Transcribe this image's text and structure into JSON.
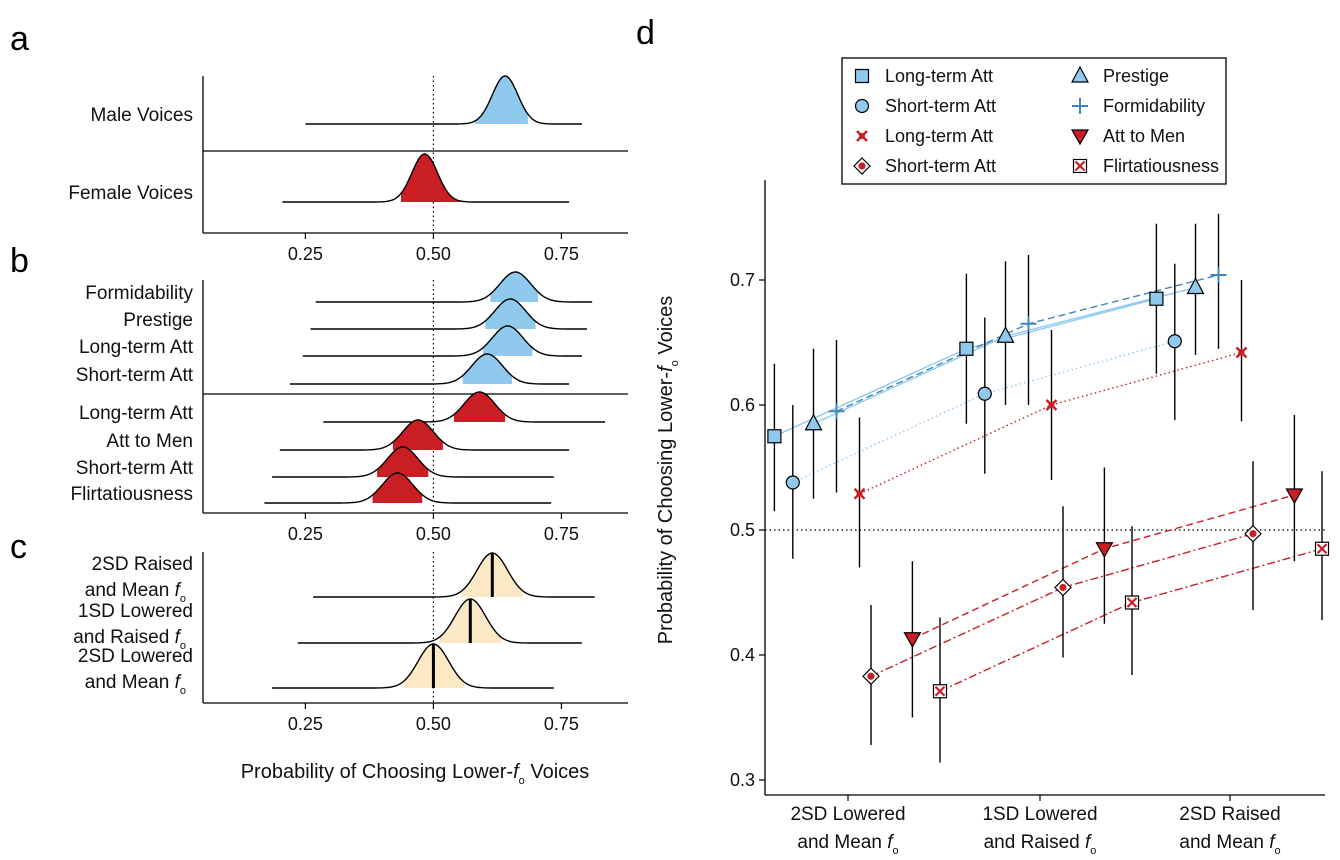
{
  "panels": {
    "a": "a",
    "b": "b",
    "c": "c",
    "d": "d"
  },
  "chart_data": [
    {
      "panel": "a",
      "type": "area",
      "categories": [
        "Male Voices",
        "Female Voices"
      ],
      "series": [
        {
          "name": "Male Voices",
          "color": "#8fc9ee",
          "peak": 0.64,
          "sd": 0.025,
          "range": [
            0.25,
            0.79
          ],
          "hdi": [
            0.58,
            0.685
          ]
        },
        {
          "name": "Female Voices",
          "color": "#c81e24",
          "peak": 0.483,
          "sd": 0.025,
          "range": [
            0.205,
            0.765
          ],
          "hdi": [
            0.435,
            0.555
          ]
        }
      ],
      "xlim": [
        0.05,
        0.88
      ],
      "xticks": [
        0.25,
        0.5,
        0.75
      ],
      "xtick_labels": [
        "0.25",
        "0.50",
        "0.75"
      ],
      "reference_line": 0.5
    },
    {
      "panel": "b",
      "type": "area",
      "categories": [
        "Formidability",
        "Prestige",
        "Long-term Att",
        "Short-term Att",
        "Long-term Att",
        "Att to Men",
        "Short-term Att",
        "Flirtatiousness"
      ],
      "series": [
        {
          "name": "Formidability",
          "color": "#8fc9ee",
          "peak": 0.66,
          "sd": 0.03,
          "range": [
            0.27,
            0.81
          ],
          "hdi": [
            0.61,
            0.705
          ]
        },
        {
          "name": "Prestige",
          "color": "#8fc9ee",
          "peak": 0.65,
          "sd": 0.03,
          "range": [
            0.26,
            0.8
          ],
          "hdi": [
            0.6,
            0.7
          ]
        },
        {
          "name": "Long-term Att",
          "color": "#8fc9ee",
          "peak": 0.645,
          "sd": 0.03,
          "range": [
            0.245,
            0.79
          ],
          "hdi": [
            0.595,
            0.695
          ]
        },
        {
          "name": "Short-term Att",
          "color": "#8fc9ee",
          "peak": 0.605,
          "sd": 0.03,
          "range": [
            0.22,
            0.765
          ],
          "hdi": [
            0.555,
            0.655
          ]
        },
        {
          "name": "Long-term Att",
          "color": "#c81e24",
          "peak": 0.59,
          "sd": 0.03,
          "range": [
            0.285,
            0.835
          ],
          "hdi": [
            0.54,
            0.64
          ]
        },
        {
          "name": "Att to Men",
          "color": "#c81e24",
          "peak": 0.47,
          "sd": 0.03,
          "range": [
            0.2,
            0.765
          ],
          "hdi": [
            0.42,
            0.52
          ]
        },
        {
          "name": "Short-term Att",
          "color": "#c81e24",
          "peak": 0.44,
          "sd": 0.03,
          "range": [
            0.185,
            0.735
          ],
          "hdi": [
            0.39,
            0.49
          ]
        },
        {
          "name": "Flirtatiousness",
          "color": "#c81e24",
          "peak": 0.43,
          "sd": 0.03,
          "range": [
            0.17,
            0.73
          ],
          "hdi": [
            0.38,
            0.48
          ]
        }
      ],
      "xlim": [
        0.05,
        0.88
      ],
      "xticks": [
        0.25,
        0.5,
        0.75
      ],
      "xtick_labels": [
        "0.25",
        "0.50",
        "0.75"
      ],
      "reference_line": 0.5
    },
    {
      "panel": "c",
      "type": "area",
      "categories": [
        {
          "line1": "2SD Raised",
          "line2": "and Mean f",
          "sub": "o"
        },
        {
          "line1": "1SD Lowered",
          "line2": "and Raised f",
          "sub": "o"
        },
        {
          "line1": "2SD Lowered",
          "line2": "and Mean f",
          "sub": "o"
        }
      ],
      "series": [
        {
          "name": "2SD Raised and Mean f0",
          "color": "#fbe9c6",
          "peak": 0.615,
          "sd": 0.03,
          "range": [
            0.265,
            0.815
          ],
          "hdi": [
            0.555,
            0.675
          ]
        },
        {
          "name": "1SD Lowered and Raised f0",
          "color": "#fbe9c6",
          "peak": 0.572,
          "sd": 0.03,
          "range": [
            0.235,
            0.79
          ],
          "hdi": [
            0.51,
            0.635
          ]
        },
        {
          "name": "2SD Lowered and Mean f0",
          "color": "#fbe9c6",
          "peak": 0.5,
          "sd": 0.03,
          "range": [
            0.185,
            0.735
          ],
          "hdi": [
            0.44,
            0.56
          ]
        }
      ],
      "xlim": [
        0.05,
        0.88
      ],
      "xticks": [
        0.25,
        0.5,
        0.75
      ],
      "xtick_labels": [
        "0.25",
        "0.50",
        "0.75"
      ],
      "reference_line": 0.5,
      "xlabel": {
        "text": "Probability of Choosing Lower-",
        "italic": "f",
        "sub": "o",
        "tail": " Voices"
      }
    },
    {
      "panel": "d",
      "type": "scatter",
      "categories": [
        {
          "line1": "2SD Lowered",
          "line2": "and Mean f",
          "sub": "o"
        },
        {
          "line1": "1SD Lowered",
          "line2": "and Raised f",
          "sub": "o"
        },
        {
          "line1": "2SD Raised",
          "line2": "and Mean f",
          "sub": "o"
        }
      ],
      "ylim": [
        0.3,
        0.75
      ],
      "yticks": [
        0.3,
        0.4,
        0.5,
        0.6,
        0.7
      ],
      "ytick_labels": [
        "0.3",
        "0.4",
        "0.5",
        "0.6",
        "0.7"
      ],
      "reference_line": 0.5,
      "ylabel": {
        "text": "Probability of Choosing Lower-",
        "italic": "f",
        "sub": "o",
        "tail": " Voices"
      },
      "series": [
        {
          "name": "Long-term Att",
          "marker": "square",
          "color": "#8fc9ee",
          "line": "solid",
          "offset": -0.032,
          "values": [
            0.575,
            0.645,
            0.685
          ],
          "low": [
            0.515,
            0.585,
            0.625
          ],
          "high": [
            0.633,
            0.705,
            0.745
          ]
        },
        {
          "name": "Short-term Att",
          "marker": "circle",
          "color": "#8fc9ee",
          "line": "dotted",
          "offset": -0.024,
          "values": [
            0.538,
            0.609,
            0.651
          ],
          "low": [
            0.477,
            0.545,
            0.588
          ],
          "high": [
            0.6,
            0.67,
            0.713
          ]
        },
        {
          "name": "Long-term Att",
          "marker": "x",
          "color": "#c81e24",
          "line": "dotted",
          "offset": 0.005,
          "values": [
            0.529,
            0.6,
            0.642
          ],
          "low": [
            0.47,
            0.54,
            0.587
          ],
          "high": [
            0.59,
            0.66,
            0.7
          ]
        },
        {
          "name": "Short-term Att",
          "marker": "diamond",
          "color": "#c81e24",
          "line": "dashdot",
          "offset": 0.01,
          "values": [
            0.383,
            0.454,
            0.497
          ],
          "low": [
            0.328,
            0.398,
            0.436
          ],
          "high": [
            0.44,
            0.519,
            0.555
          ]
        },
        {
          "name": "Prestige",
          "marker": "triangle",
          "color": "#8fc9ee",
          "line": "solid",
          "offset": -0.015,
          "values": [
            0.585,
            0.655,
            0.694
          ],
          "low": [
            0.525,
            0.6,
            0.64
          ],
          "high": [
            0.645,
            0.715,
            0.745
          ]
        },
        {
          "name": "Formidability",
          "marker": "plus",
          "color": "#3f88b6",
          "line": "dashed",
          "offset": -0.005,
          "values": [
            0.595,
            0.665,
            0.704
          ],
          "low": [
            0.53,
            0.6,
            0.645
          ],
          "high": [
            0.652,
            0.72,
            0.753
          ]
        },
        {
          "name": "Att to Men",
          "marker": "triangle-down",
          "color": "#c81e24",
          "line": "dashed",
          "offset": 0.028,
          "values": [
            0.413,
            0.485,
            0.528
          ],
          "low": [
            0.35,
            0.425,
            0.475
          ],
          "high": [
            0.475,
            0.55,
            0.592
          ]
        },
        {
          "name": "Flirtatiousness",
          "marker": "square-x",
          "color": "#c81e24",
          "line": "dashdot",
          "offset": 0.04,
          "values": [
            0.371,
            0.442,
            0.485
          ],
          "low": [
            0.314,
            0.384,
            0.428
          ],
          "high": [
            0.43,
            0.503,
            0.547
          ]
        }
      ]
    }
  ]
}
